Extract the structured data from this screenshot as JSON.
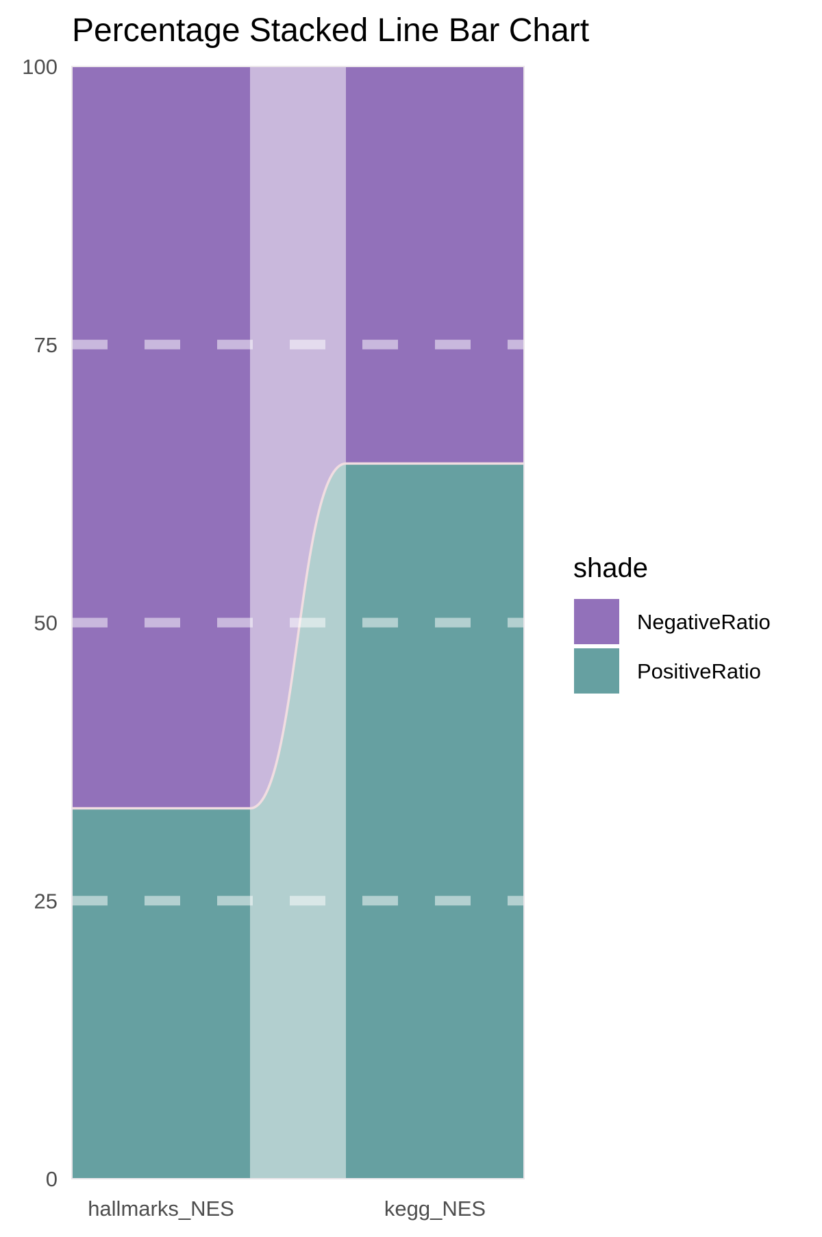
{
  "chart_data": {
    "type": "bar",
    "title": "Percentage Stacked Line Bar Chart",
    "xlabel": "",
    "ylabel": "",
    "ylim": [
      0,
      100
    ],
    "yticks": [
      "0",
      "25",
      "50",
      "75",
      "100"
    ],
    "categories": [
      "hallmarks_NES",
      "kegg_NES"
    ],
    "series": [
      {
        "name": "PositiveRatio",
        "values": [
          33.3,
          64.3
        ],
        "color": "#66a0a1"
      },
      {
        "name": "NegativeRatio",
        "values": [
          66.7,
          35.7
        ],
        "color": "#9271ba"
      }
    ],
    "legend": {
      "title": "shade",
      "position": "right"
    },
    "grid": "dashed",
    "connector_colors": {
      "PositiveRatio": "#b2cfcf",
      "NegativeRatio": "#c9b8dc"
    },
    "boundary_color": "#f1dde1"
  }
}
